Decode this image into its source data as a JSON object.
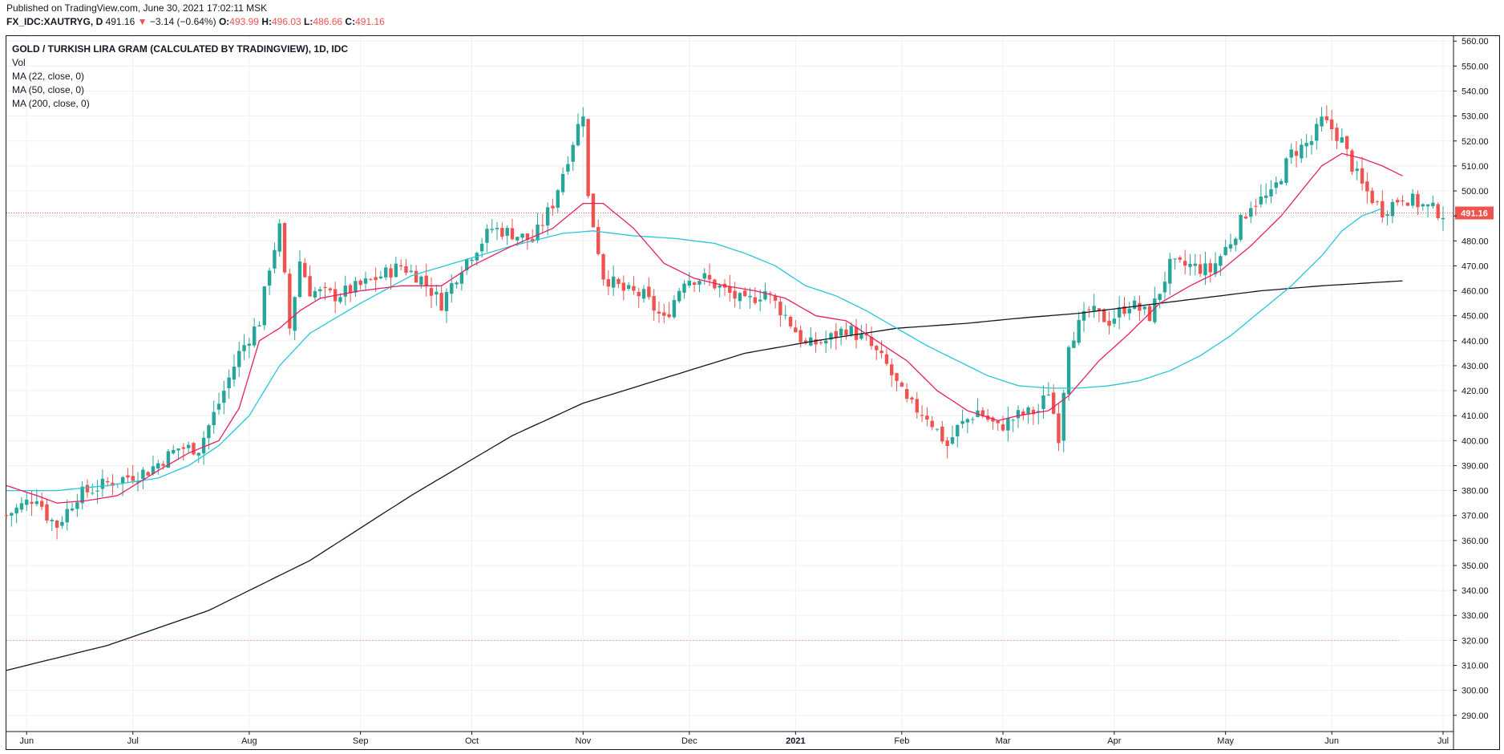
{
  "header": {
    "published": "Published on TradingView.com, June 30, 2021 17:02:11 MSK",
    "symbol": "FX_IDC:XAUTRYG, D",
    "last": "491.16",
    "change_arrow": "▼",
    "change": "−3.14 (−0.64%)",
    "o_label": "O:",
    "o_val": "493.99",
    "h_label": "H:",
    "h_val": "496.03",
    "l_label": "L:",
    "l_val": "486.66",
    "c_label": "C:",
    "c_val": "491.16"
  },
  "legend": {
    "title": "GOLD / TURKISH LIRA GRAM (CALCULATED BY TRADINGVIEW), 1D, IDC",
    "vol": "Vol",
    "ma22": "MA (22, close, 0)",
    "ma50": "MA (50, close, 0)",
    "ma200": "MA (200, close, 0)"
  },
  "colors": {
    "up": "#26a69a",
    "down": "#ef5350",
    "ma22": "#e91e63",
    "ma50": "#26c6da",
    "ma200": "#131722",
    "grid": "#eef0f3"
  },
  "chart_data": {
    "type": "candlestick",
    "price_label": "491.16",
    "y_ticks": [
      560,
      550,
      540,
      530,
      520,
      510,
      500,
      490,
      480,
      470,
      460,
      450,
      440,
      430,
      420,
      410,
      400,
      390,
      380,
      370,
      360,
      350,
      340,
      330,
      320,
      310,
      300,
      290
    ],
    "y_tick_labels": [
      "560.00",
      "550.00",
      "540.00",
      "530.00",
      "520.00",
      "510.00",
      "500.00",
      "490.00",
      "480.00",
      "470.00",
      "460.00",
      "450.00",
      "440.00",
      "430.00",
      "420.00",
      "410.00",
      "400.00",
      "390.00",
      "380.00",
      "370.00",
      "360.00",
      "350.00",
      "340.00",
      "330.00",
      "320.00",
      "310.00",
      "300.00",
      "290.00"
    ],
    "ylim": [
      283.5,
      562
    ],
    "x_labels": [
      "Jun",
      "Jul",
      "Aug",
      "Sep",
      "Oct",
      "Nov",
      "Dec",
      "2021",
      "Feb",
      "Mar",
      "Apr",
      "May",
      "Jun",
      "Jul"
    ],
    "x_label_bars": [
      4,
      25,
      48,
      70,
      92,
      114,
      135,
      156,
      177,
      197,
      219,
      241,
      262,
      284
    ],
    "n_bars": 285,
    "dashed_level": 320,
    "close_anchors": [
      [
        0,
        370
      ],
      [
        6,
        378
      ],
      [
        8,
        370
      ],
      [
        10,
        366
      ],
      [
        14,
        378
      ],
      [
        20,
        383
      ],
      [
        28,
        388
      ],
      [
        34,
        397
      ],
      [
        38,
        397
      ],
      [
        42,
        415
      ],
      [
        46,
        435
      ],
      [
        50,
        448
      ],
      [
        52,
        470
      ],
      [
        54,
        485
      ],
      [
        56,
        445
      ],
      [
        58,
        472
      ],
      [
        60,
        460
      ],
      [
        65,
        458
      ],
      [
        70,
        462
      ],
      [
        78,
        470
      ],
      [
        82,
        465
      ],
      [
        86,
        455
      ],
      [
        90,
        470
      ],
      [
        96,
        485
      ],
      [
        100,
        483
      ],
      [
        104,
        480
      ],
      [
        108,
        495
      ],
      [
        112,
        520
      ],
      [
        114,
        532
      ],
      [
        115,
        497
      ],
      [
        118,
        466
      ],
      [
        122,
        460
      ],
      [
        126,
        458
      ],
      [
        130,
        448
      ],
      [
        134,
        465
      ],
      [
        138,
        465
      ],
      [
        142,
        460
      ],
      [
        146,
        455
      ],
      [
        150,
        460
      ],
      [
        154,
        450
      ],
      [
        158,
        438
      ],
      [
        162,
        440
      ],
      [
        166,
        445
      ],
      [
        170,
        440
      ],
      [
        174,
        430
      ],
      [
        178,
        415
      ],
      [
        182,
        410
      ],
      [
        186,
        398
      ],
      [
        188,
        405
      ],
      [
        192,
        412
      ],
      [
        196,
        405
      ],
      [
        200,
        410
      ],
      [
        204,
        412
      ],
      [
        206,
        420
      ],
      [
        208,
        402
      ],
      [
        210,
        440
      ],
      [
        214,
        452
      ],
      [
        218,
        448
      ],
      [
        222,
        455
      ],
      [
        226,
        450
      ],
      [
        230,
        470
      ],
      [
        234,
        470
      ],
      [
        238,
        468
      ],
      [
        242,
        480
      ],
      [
        246,
        495
      ],
      [
        250,
        498
      ],
      [
        254,
        515
      ],
      [
        258,
        520
      ],
      [
        260,
        528
      ],
      [
        262,
        525
      ],
      [
        264,
        520
      ],
      [
        266,
        510
      ],
      [
        268,
        502
      ],
      [
        272,
        492
      ],
      [
        276,
        498
      ],
      [
        280,
        494
      ],
      [
        284,
        491
      ]
    ],
    "ma22_anchors": [
      [
        0,
        382
      ],
      [
        6,
        378
      ],
      [
        10,
        375
      ],
      [
        16,
        376
      ],
      [
        22,
        378
      ],
      [
        30,
        388
      ],
      [
        36,
        395
      ],
      [
        42,
        400
      ],
      [
        46,
        413
      ],
      [
        50,
        440
      ],
      [
        54,
        445
      ],
      [
        58,
        452
      ],
      [
        62,
        457
      ],
      [
        70,
        460
      ],
      [
        78,
        462
      ],
      [
        86,
        462
      ],
      [
        92,
        470
      ],
      [
        100,
        478
      ],
      [
        108,
        485
      ],
      [
        114,
        495
      ],
      [
        118,
        495
      ],
      [
        124,
        485
      ],
      [
        130,
        471
      ],
      [
        136,
        465
      ],
      [
        142,
        462
      ],
      [
        148,
        460
      ],
      [
        154,
        457
      ],
      [
        160,
        450
      ],
      [
        166,
        448
      ],
      [
        172,
        440
      ],
      [
        178,
        432
      ],
      [
        184,
        420
      ],
      [
        190,
        412
      ],
      [
        196,
        408
      ],
      [
        200,
        410
      ],
      [
        206,
        412
      ],
      [
        210,
        418
      ],
      [
        216,
        432
      ],
      [
        222,
        443
      ],
      [
        228,
        455
      ],
      [
        234,
        462
      ],
      [
        240,
        468
      ],
      [
        246,
        478
      ],
      [
        252,
        490
      ],
      [
        256,
        500
      ],
      [
        260,
        510
      ],
      [
        264,
        515
      ],
      [
        268,
        513
      ],
      [
        272,
        510
      ],
      [
        276,
        506
      ]
    ],
    "ma50_anchors": [
      [
        0,
        380
      ],
      [
        10,
        380
      ],
      [
        20,
        382
      ],
      [
        30,
        385
      ],
      [
        36,
        390
      ],
      [
        42,
        398
      ],
      [
        48,
        410
      ],
      [
        54,
        430
      ],
      [
        60,
        443
      ],
      [
        70,
        455
      ],
      [
        80,
        466
      ],
      [
        90,
        472
      ],
      [
        100,
        478
      ],
      [
        110,
        483
      ],
      [
        116,
        484
      ],
      [
        124,
        482
      ],
      [
        132,
        481
      ],
      [
        140,
        479
      ],
      [
        146,
        475
      ],
      [
        152,
        470
      ],
      [
        158,
        462
      ],
      [
        164,
        458
      ],
      [
        170,
        452
      ],
      [
        176,
        445
      ],
      [
        182,
        438
      ],
      [
        188,
        432
      ],
      [
        194,
        426
      ],
      [
        200,
        422
      ],
      [
        206,
        421
      ],
      [
        212,
        421
      ],
      [
        218,
        422
      ],
      [
        224,
        424
      ],
      [
        230,
        428
      ],
      [
        236,
        434
      ],
      [
        242,
        442
      ],
      [
        248,
        452
      ],
      [
        254,
        462
      ],
      [
        260,
        474
      ],
      [
        264,
        484
      ],
      [
        268,
        490
      ],
      [
        272,
        493
      ]
    ],
    "ma200_anchors": [
      [
        0,
        308
      ],
      [
        20,
        318
      ],
      [
        40,
        332
      ],
      [
        60,
        352
      ],
      [
        80,
        378
      ],
      [
        100,
        402
      ],
      [
        114,
        415
      ],
      [
        130,
        425
      ],
      [
        146,
        435
      ],
      [
        160,
        440
      ],
      [
        176,
        445
      ],
      [
        190,
        447
      ],
      [
        200,
        449
      ],
      [
        212,
        451
      ],
      [
        224,
        454
      ],
      [
        236,
        457
      ],
      [
        248,
        460
      ],
      [
        260,
        462
      ],
      [
        276,
        464
      ]
    ]
  }
}
